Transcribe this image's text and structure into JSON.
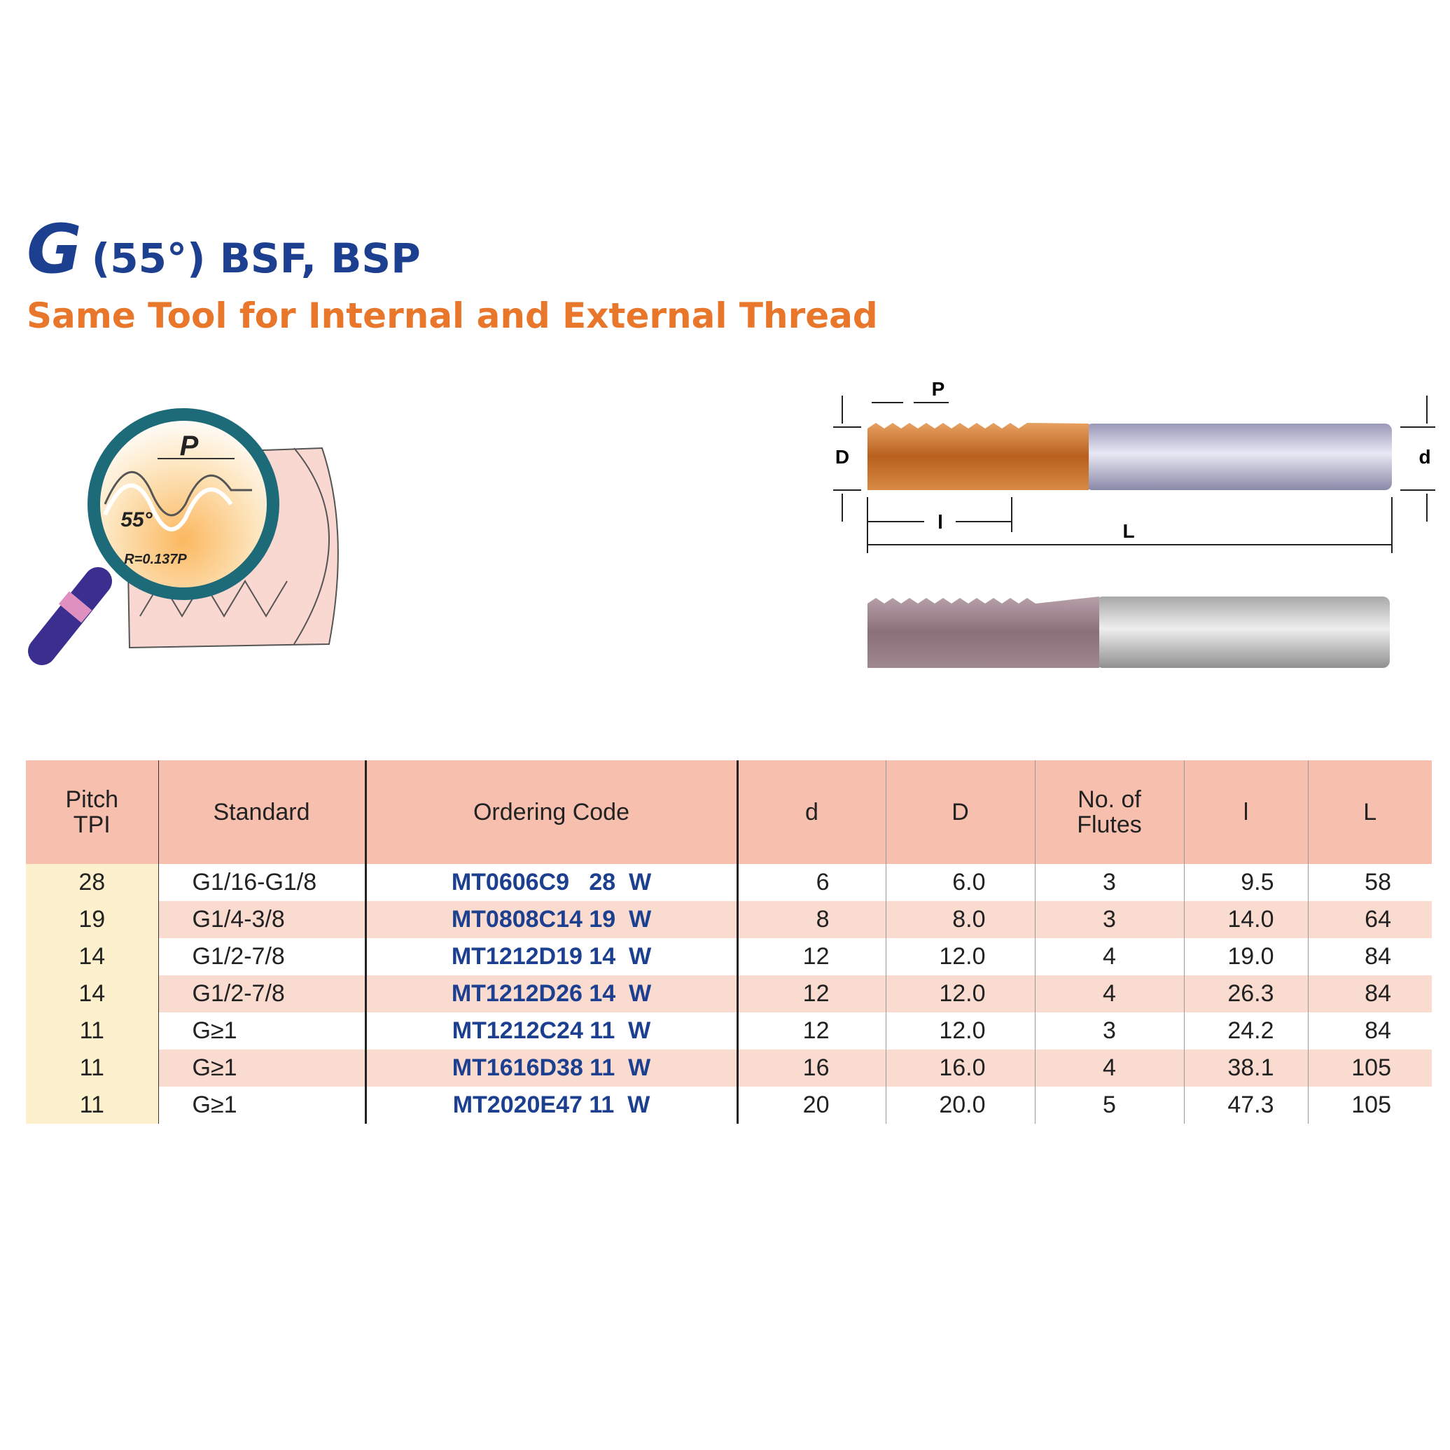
{
  "header": {
    "title_letter": "G",
    "title": "(55°) BSF, BSP",
    "subtitle": "Same Tool for Internal and External Thread"
  },
  "diagram": {
    "magnifier": {
      "pitch": "P",
      "angle": "55°",
      "radius": "R=0.137P"
    },
    "tool": {
      "pitch": "P",
      "D": "D",
      "d": "d",
      "l": "l",
      "L": "L"
    }
  },
  "table": {
    "columns": [
      [
        "Pitch",
        "TPI"
      ],
      [
        "Standard"
      ],
      [
        "Ordering Code"
      ],
      [
        "d"
      ],
      [
        "D"
      ],
      [
        "No. of",
        "Flutes"
      ],
      [
        "l"
      ],
      [
        "L"
      ]
    ],
    "rows": [
      [
        "28",
        "G1/16-G1/8",
        "MT0606C9   28  W",
        "6",
        "6.0",
        "3",
        "9.5",
        "58"
      ],
      [
        "19",
        "G1/4-3/8",
        "MT0808C14 19  W",
        "8",
        "8.0",
        "3",
        "14.0",
        "64"
      ],
      [
        "14",
        "G1/2-7/8",
        "MT1212D19 14  W",
        "12",
        "12.0",
        "4",
        "19.0",
        "84"
      ],
      [
        "14",
        "G1/2-7/8",
        "MT1212D26 14  W",
        "12",
        "12.0",
        "4",
        "26.3",
        "84"
      ],
      [
        "11",
        "G≥1",
        "MT1212C24 11  W",
        "12",
        "12.0",
        "3",
        "24.2",
        "84"
      ],
      [
        "11",
        "G≥1",
        "MT1616D38 11  W",
        "16",
        "16.0",
        "4",
        "38.1",
        "105"
      ],
      [
        "11",
        "G≥1",
        "MT2020E47 11  W",
        "20",
        "20.0",
        "5",
        "47.3",
        "105"
      ]
    ]
  }
}
